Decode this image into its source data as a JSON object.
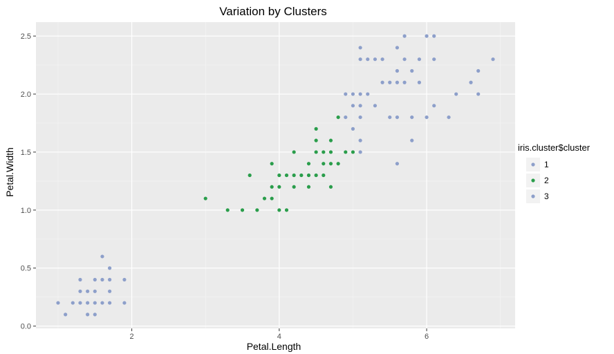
{
  "chart_data": {
    "type": "scatter",
    "title": "Variation by Clusters",
    "xlabel": "Petal.Length",
    "ylabel": "Petal.Width",
    "xlim": [
      0.7,
      7.2
    ],
    "ylim": [
      -0.02,
      2.62
    ],
    "xticks": [
      2,
      4,
      6
    ],
    "xtick_labels": [
      "2",
      "4",
      "6"
    ],
    "yticks": [
      0.0,
      0.5,
      1.0,
      1.5,
      2.0,
      2.5
    ],
    "ytick_labels": [
      "0.0",
      "0.5",
      "1.0",
      "1.5",
      "2.0",
      "2.5"
    ],
    "grid": true,
    "background": "#ebebeb",
    "legend": {
      "title": "iris.cluster$cluster",
      "placement": "right",
      "entries": [
        {
          "label": "1",
          "color": "#8d9fca"
        },
        {
          "label": "2",
          "color": "#2a9d4b"
        },
        {
          "label": "3",
          "color": "#8d9fca"
        }
      ]
    },
    "series": [
      {
        "name": "1",
        "color": "#8d9fca",
        "points": [
          [
            1.0,
            0.2
          ],
          [
            1.1,
            0.1
          ],
          [
            1.2,
            0.2
          ],
          [
            1.3,
            0.2
          ],
          [
            1.3,
            0.3
          ],
          [
            1.3,
            0.4
          ],
          [
            1.4,
            0.1
          ],
          [
            1.4,
            0.2
          ],
          [
            1.4,
            0.3
          ],
          [
            1.5,
            0.1
          ],
          [
            1.5,
            0.2
          ],
          [
            1.5,
            0.3
          ],
          [
            1.5,
            0.4
          ],
          [
            1.6,
            0.2
          ],
          [
            1.6,
            0.4
          ],
          [
            1.6,
            0.6
          ],
          [
            1.7,
            0.2
          ],
          [
            1.7,
            0.3
          ],
          [
            1.7,
            0.4
          ],
          [
            1.7,
            0.5
          ],
          [
            1.9,
            0.2
          ],
          [
            1.9,
            0.4
          ]
        ]
      },
      {
        "name": "2",
        "color": "#2a9d4b",
        "points": [
          [
            3.0,
            1.1
          ],
          [
            3.3,
            1.0
          ],
          [
            3.5,
            1.0
          ],
          [
            3.6,
            1.3
          ],
          [
            3.7,
            1.0
          ],
          [
            3.8,
            1.1
          ],
          [
            3.9,
            1.1
          ],
          [
            3.9,
            1.2
          ],
          [
            3.9,
            1.4
          ],
          [
            4.0,
            1.0
          ],
          [
            4.0,
            1.2
          ],
          [
            4.0,
            1.3
          ],
          [
            4.1,
            1.0
          ],
          [
            4.1,
            1.3
          ],
          [
            4.2,
            1.2
          ],
          [
            4.2,
            1.3
          ],
          [
            4.2,
            1.5
          ],
          [
            4.3,
            1.3
          ],
          [
            4.4,
            1.2
          ],
          [
            4.4,
            1.3
          ],
          [
            4.4,
            1.4
          ],
          [
            4.5,
            1.3
          ],
          [
            4.5,
            1.5
          ],
          [
            4.5,
            1.6
          ],
          [
            4.5,
            1.7
          ],
          [
            4.6,
            1.3
          ],
          [
            4.6,
            1.4
          ],
          [
            4.6,
            1.5
          ],
          [
            4.7,
            1.2
          ],
          [
            4.7,
            1.4
          ],
          [
            4.7,
            1.5
          ],
          [
            4.7,
            1.6
          ],
          [
            4.8,
            1.4
          ],
          [
            4.8,
            1.8
          ],
          [
            4.9,
            1.5
          ],
          [
            5.0,
            1.5
          ]
        ]
      },
      {
        "name": "3",
        "color": "#8d9fca",
        "points": [
          [
            4.9,
            1.8
          ],
          [
            4.9,
            2.0
          ],
          [
            5.0,
            1.7
          ],
          [
            5.0,
            1.9
          ],
          [
            5.0,
            2.0
          ],
          [
            5.1,
            1.5
          ],
          [
            5.1,
            1.6
          ],
          [
            5.1,
            1.8
          ],
          [
            5.1,
            1.9
          ],
          [
            5.1,
            2.0
          ],
          [
            5.1,
            2.3
          ],
          [
            5.1,
            2.4
          ],
          [
            5.2,
            2.0
          ],
          [
            5.2,
            2.3
          ],
          [
            5.3,
            1.9
          ],
          [
            5.3,
            2.3
          ],
          [
            5.4,
            2.1
          ],
          [
            5.4,
            2.3
          ],
          [
            5.5,
            1.8
          ],
          [
            5.5,
            2.1
          ],
          [
            5.6,
            1.4
          ],
          [
            5.6,
            1.8
          ],
          [
            5.6,
            2.1
          ],
          [
            5.6,
            2.2
          ],
          [
            5.6,
            2.4
          ],
          [
            5.7,
            2.1
          ],
          [
            5.7,
            2.3
          ],
          [
            5.7,
            2.5
          ],
          [
            5.8,
            1.6
          ],
          [
            5.8,
            1.8
          ],
          [
            5.8,
            2.2
          ],
          [
            5.9,
            2.1
          ],
          [
            5.9,
            2.3
          ],
          [
            6.0,
            1.8
          ],
          [
            6.0,
            2.5
          ],
          [
            6.1,
            1.9
          ],
          [
            6.1,
            2.3
          ],
          [
            6.1,
            2.5
          ],
          [
            6.3,
            1.8
          ],
          [
            6.4,
            2.0
          ],
          [
            6.6,
            2.1
          ],
          [
            6.7,
            2.0
          ],
          [
            6.7,
            2.2
          ],
          [
            6.9,
            2.3
          ]
        ]
      }
    ]
  }
}
